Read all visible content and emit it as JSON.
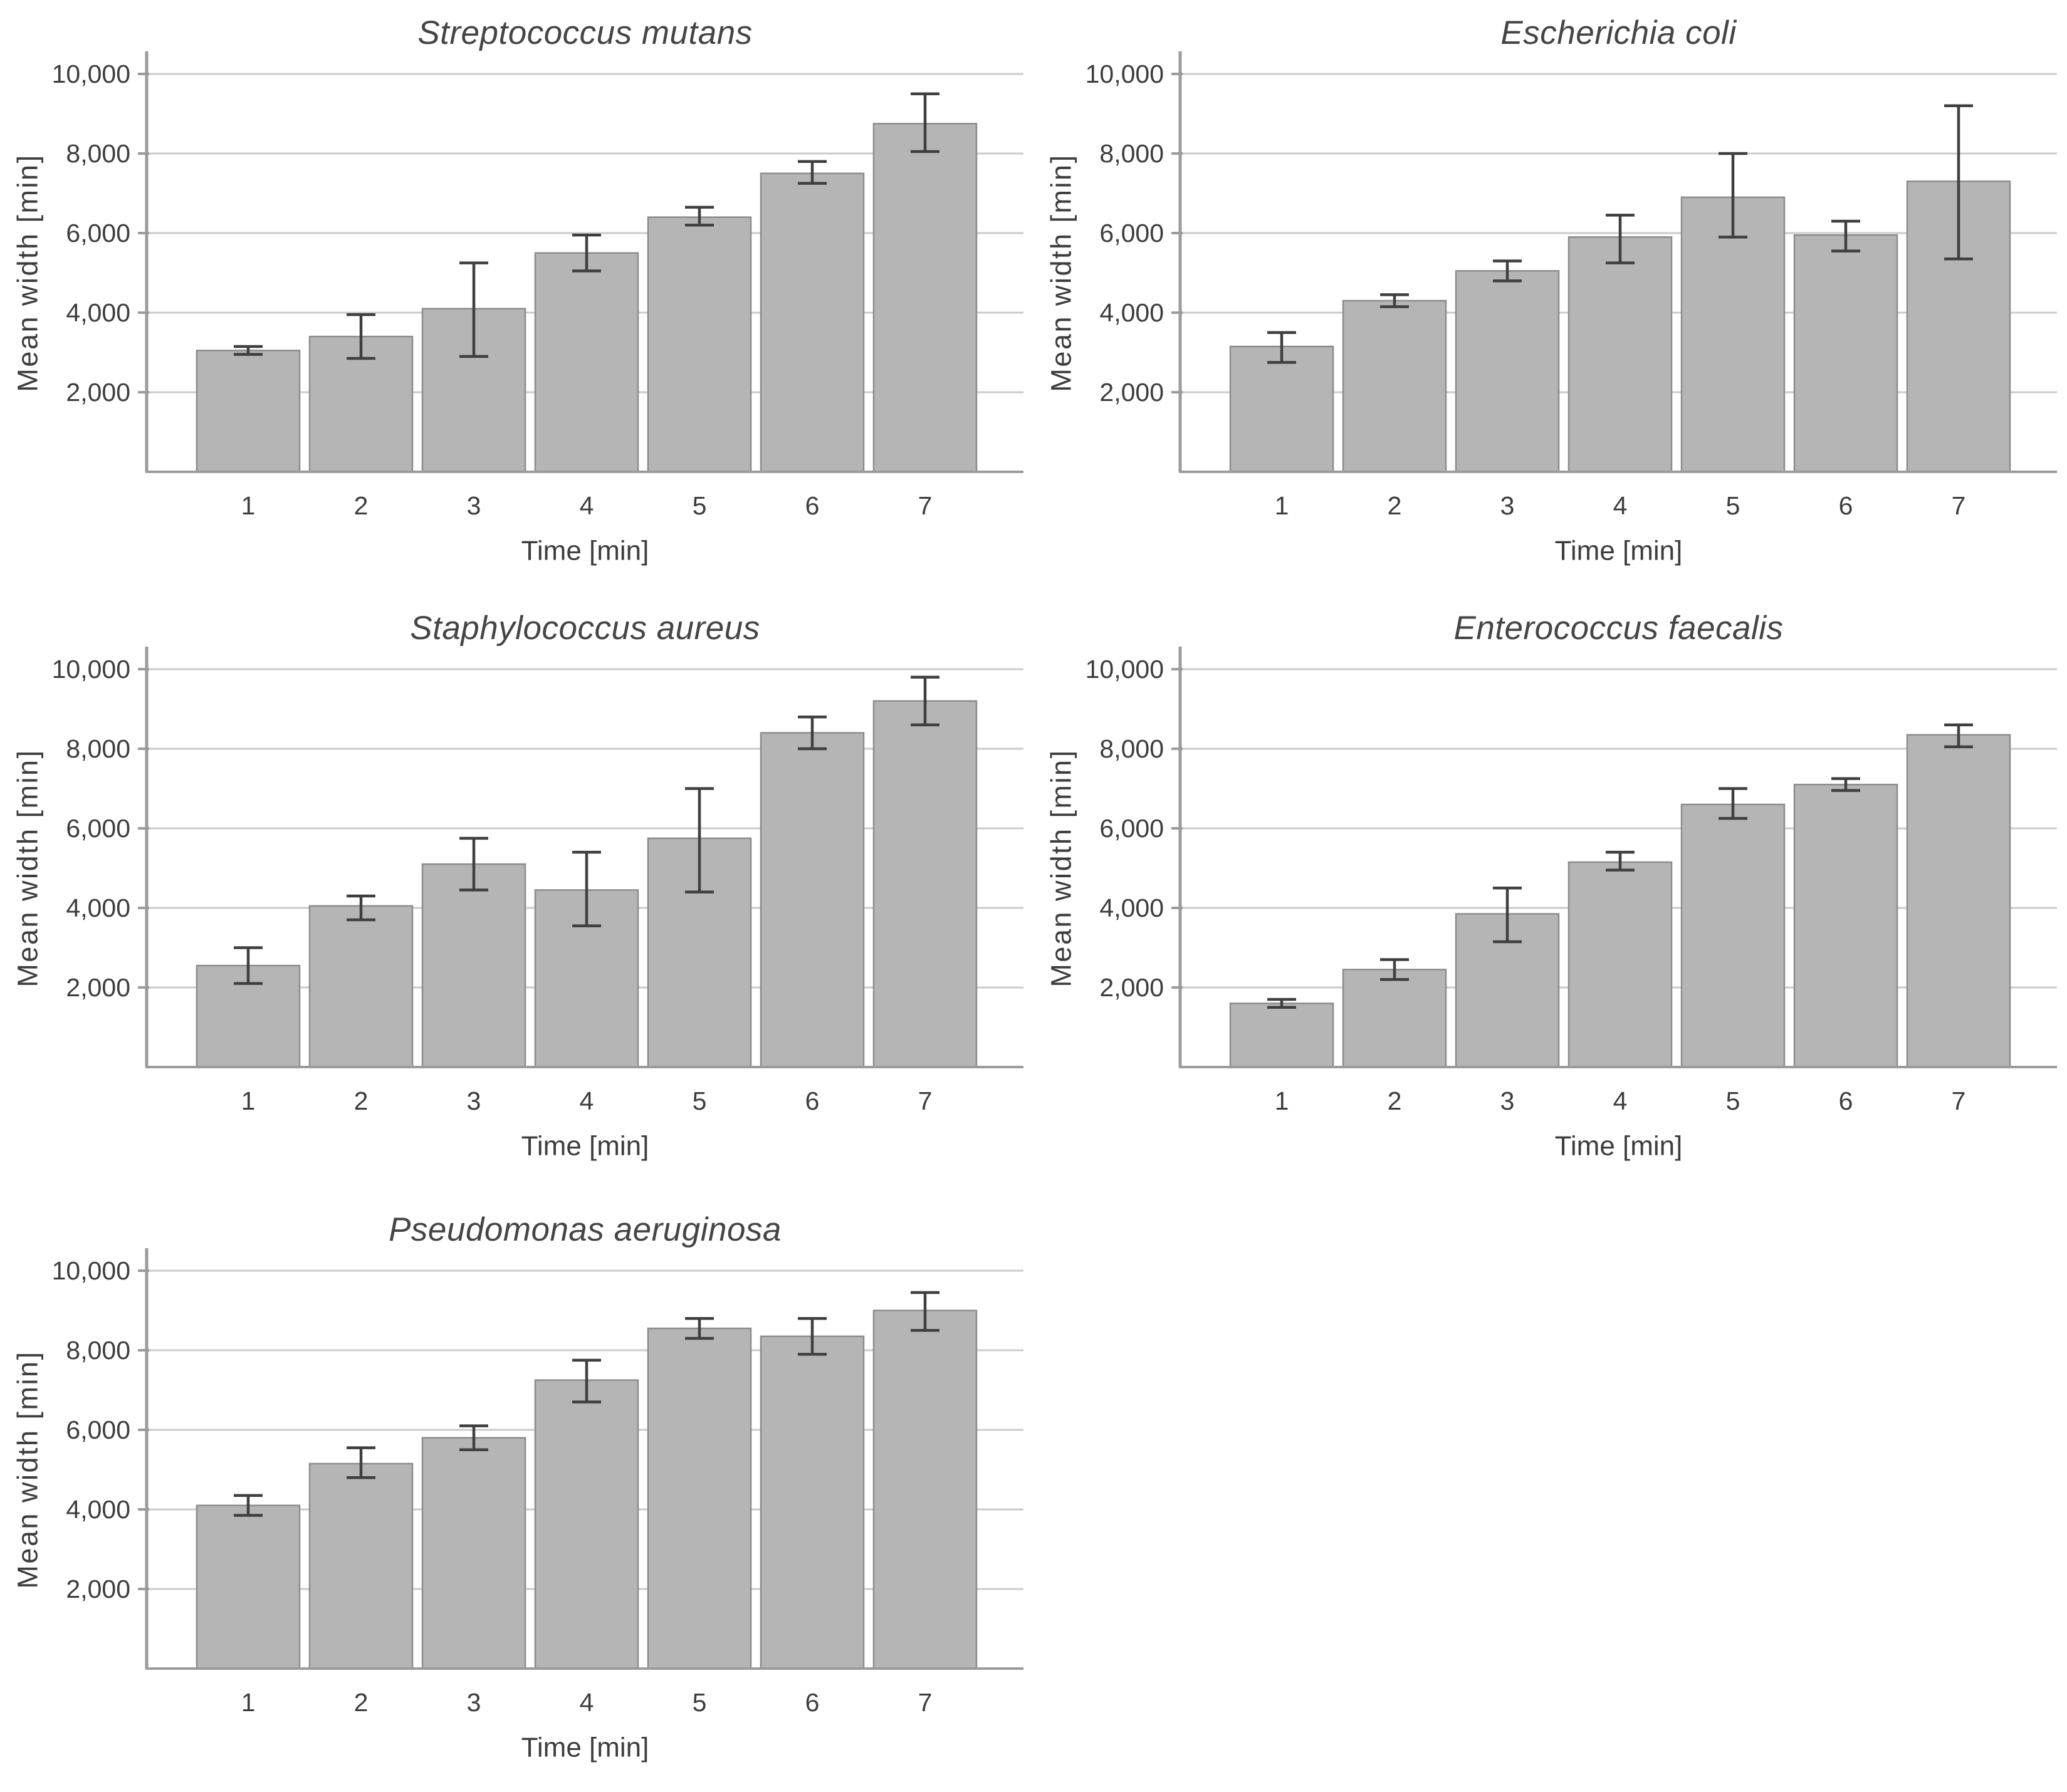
{
  "figure": {
    "background": "#ffffff",
    "layout": "2x3 grid, five bar charts, bottom-right cell empty"
  },
  "styles": {
    "bar_fill": "#b5b5b5",
    "bar_border": "#8c8c8c",
    "error_bar_color": "#3f3f3f",
    "grid_color": "#cbcbcb",
    "axis_color": "#9b9b9b",
    "tick_color": "#9b9b9b",
    "text_color": "#3d3d3d",
    "title_color": "#454545"
  },
  "chart_data": [
    {
      "type": "bar",
      "title": "Streptococcus mutans",
      "xlabel": "Time [min]",
      "ylabel": "Mean width [min]",
      "categories": [
        "1",
        "2",
        "3",
        "4",
        "5",
        "6",
        "7"
      ],
      "values": [
        3050,
        3400,
        4100,
        5500,
        6400,
        7500,
        8750
      ],
      "error_low": [
        2950,
        2850,
        2900,
        5050,
        6200,
        7250,
        8050
      ],
      "error_high": [
        3150,
        3950,
        5250,
        5950,
        6650,
        7800,
        9500
      ],
      "ylim": [
        0,
        10570
      ],
      "yticks": [
        2000,
        4000,
        6000,
        8000,
        10000
      ],
      "ytick_labels": [
        "2,000",
        "4,000",
        "6,000",
        "8,000",
        "10,000"
      ],
      "grid": true,
      "legend": null
    },
    {
      "type": "bar",
      "title": "Escherichia coli",
      "xlabel": "Time [min]",
      "ylabel": "Mean width [min]",
      "categories": [
        "1",
        "2",
        "3",
        "4",
        "5",
        "6",
        "7"
      ],
      "values": [
        3150,
        4300,
        5050,
        5900,
        6900,
        5950,
        7300
      ],
      "error_low": [
        2750,
        4150,
        4800,
        5250,
        5900,
        5550,
        5350
      ],
      "error_high": [
        3500,
        4450,
        5300,
        6450,
        8000,
        6300,
        9200
      ],
      "ylim": [
        0,
        10570
      ],
      "yticks": [
        2000,
        4000,
        6000,
        8000,
        10000
      ],
      "ytick_labels": [
        "2,000",
        "4,000",
        "6,000",
        "8,000",
        "10,000"
      ],
      "grid": true,
      "legend": null
    },
    {
      "type": "bar",
      "title": "Staphylococcus aureus",
      "xlabel": "Time [min]",
      "ylabel": "Mean width [min]",
      "categories": [
        "1",
        "2",
        "3",
        "4",
        "5",
        "6",
        "7"
      ],
      "values": [
        2550,
        4050,
        5100,
        4450,
        5750,
        8400,
        9200
      ],
      "error_low": [
        2100,
        3700,
        4450,
        3550,
        4400,
        8000,
        8600
      ],
      "error_high": [
        3000,
        4300,
        5750,
        5400,
        7000,
        8800,
        9800
      ],
      "ylim": [
        0,
        10570
      ],
      "yticks": [
        2000,
        4000,
        6000,
        8000,
        10000
      ],
      "ytick_labels": [
        "2,000",
        "4,000",
        "6,000",
        "8,000",
        "10,000"
      ],
      "grid": true,
      "legend": null
    },
    {
      "type": "bar",
      "title": "Enterococcus faecalis",
      "xlabel": "Time [min]",
      "ylabel": "Mean width [min]",
      "categories": [
        "1",
        "2",
        "3",
        "4",
        "5",
        "6",
        "7"
      ],
      "values": [
        1600,
        2450,
        3850,
        5150,
        6600,
        7100,
        8350
      ],
      "error_low": [
        1500,
        2200,
        3150,
        4950,
        6250,
        6950,
        8050
      ],
      "error_high": [
        1700,
        2700,
        4500,
        5400,
        7000,
        7250,
        8600
      ],
      "ylim": [
        0,
        10570
      ],
      "yticks": [
        2000,
        4000,
        6000,
        8000,
        10000
      ],
      "ytick_labels": [
        "2,000",
        "4,000",
        "6,000",
        "8,000",
        "10,000"
      ],
      "grid": true,
      "legend": null
    },
    {
      "type": "bar",
      "title": "Pseudomonas aeruginosa",
      "xlabel": "Time [min]",
      "ylabel": "Mean width [min]",
      "categories": [
        "1",
        "2",
        "3",
        "4",
        "5",
        "6",
        "7"
      ],
      "values": [
        4100,
        5150,
        5800,
        7250,
        8550,
        8350,
        9000
      ],
      "error_low": [
        3850,
        4800,
        5500,
        6700,
        8300,
        7900,
        8500
      ],
      "error_high": [
        4350,
        5550,
        6100,
        7750,
        8800,
        8800,
        9450
      ],
      "ylim": [
        0,
        10570
      ],
      "yticks": [
        2000,
        4000,
        6000,
        8000,
        10000
      ],
      "ytick_labels": [
        "2,000",
        "4,000",
        "6,000",
        "8,000",
        "10,000"
      ],
      "grid": true,
      "legend": null
    }
  ]
}
